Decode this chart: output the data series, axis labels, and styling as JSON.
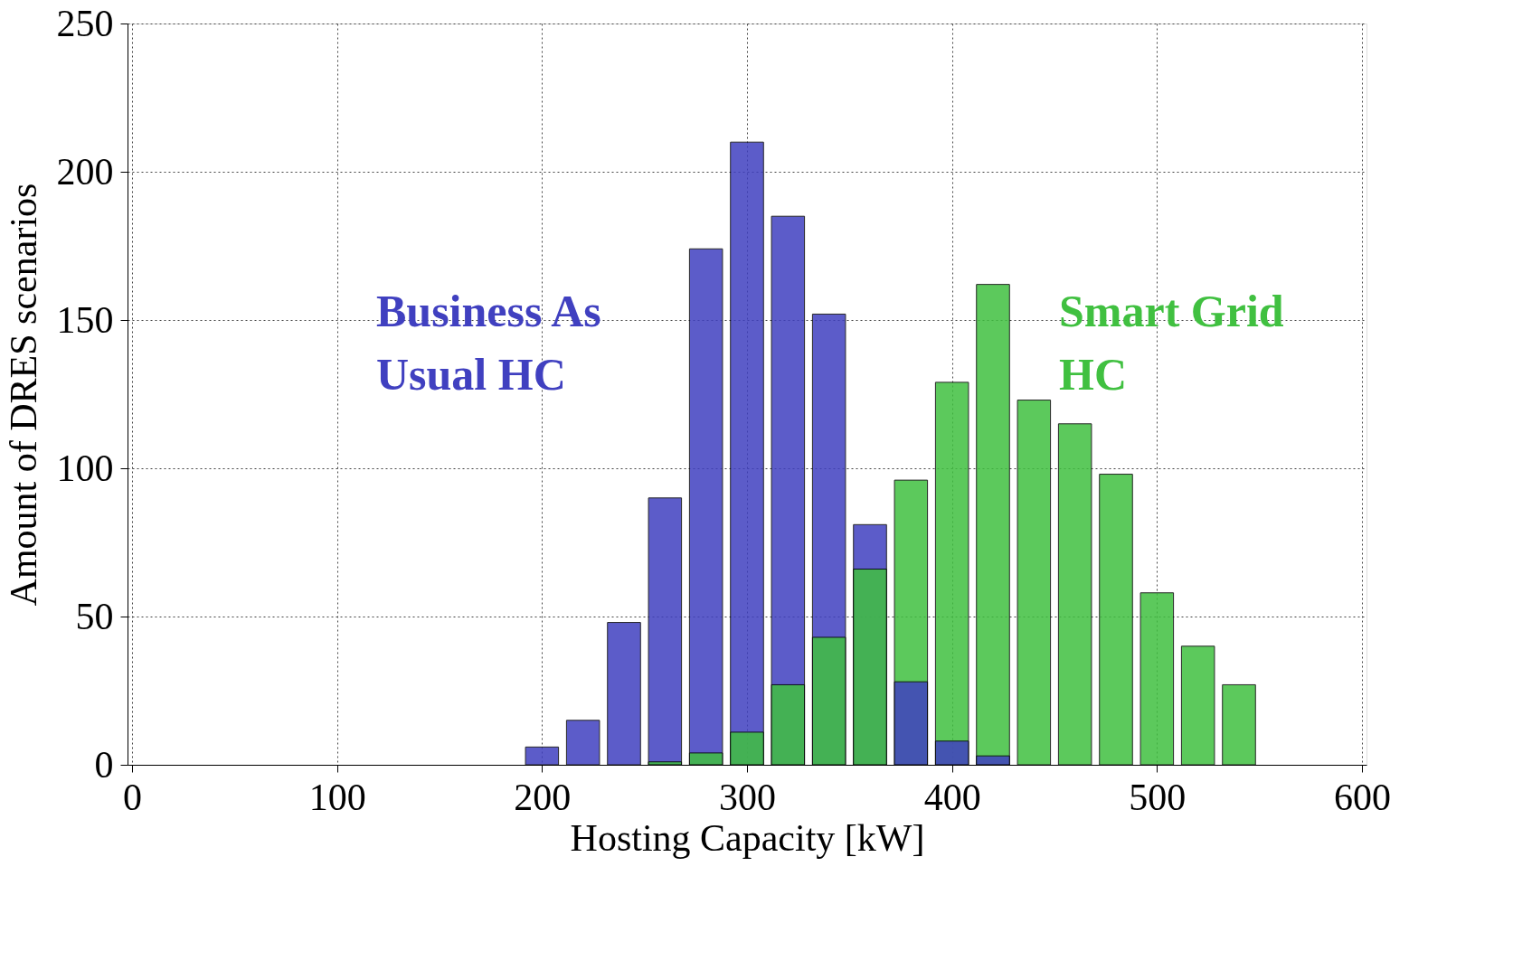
{
  "chart_data": {
    "type": "bar",
    "xlabel": "Hosting Capacity [kW]",
    "ylabel": "Amount of DRES scenarios",
    "x": [
      200,
      220,
      240,
      260,
      280,
      300,
      320,
      340,
      360,
      380,
      400,
      420,
      440,
      460,
      480,
      500,
      520,
      540
    ],
    "series": [
      {
        "name": "Business As Usual HC",
        "color": "#4040c0",
        "values": [
          6,
          15,
          48,
          90,
          174,
          210,
          185,
          152,
          81,
          28,
          8,
          3,
          null,
          null,
          null,
          null,
          null,
          null
        ]
      },
      {
        "name": "Smart Grid HC",
        "color": "#40c040",
        "values": [
          null,
          null,
          null,
          1,
          4,
          11,
          27,
          43,
          66,
          96,
          129,
          162,
          123,
          115,
          98,
          58,
          40,
          27
        ]
      }
    ],
    "xlim": [
      0,
      600
    ],
    "xticks": [
      0,
      100,
      200,
      300,
      400,
      500,
      600
    ],
    "ylim": [
      0,
      250
    ],
    "yticks": [
      0,
      50,
      100,
      150,
      200,
      250
    ],
    "grid": true
  }
}
